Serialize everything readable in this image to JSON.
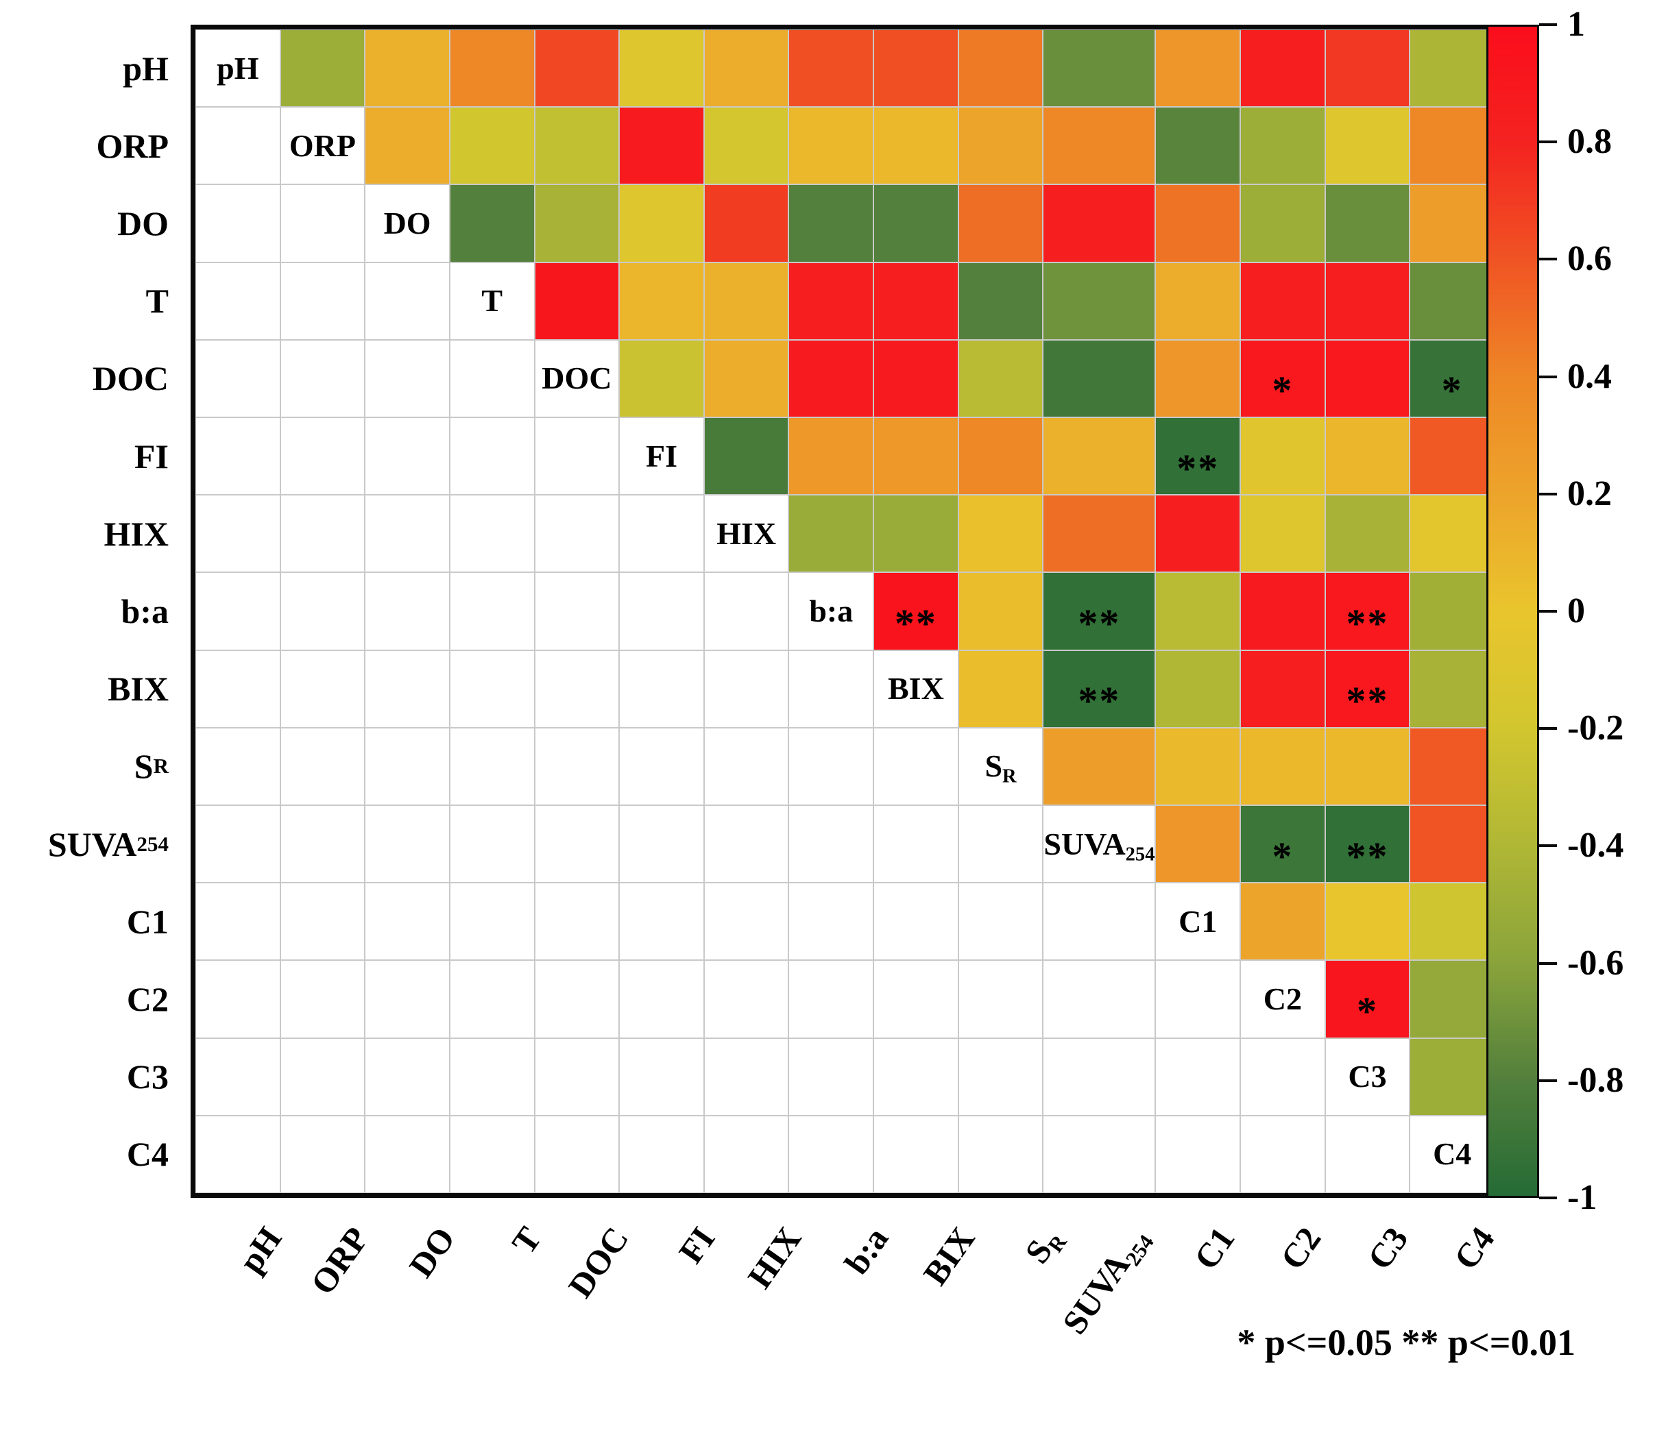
{
  "legend": {
    "text": "* p<=0.05  ** p<=0.01"
  },
  "chart_data": {
    "type": "heatmap",
    "subtype": "upper-triangle-correlation-matrix",
    "title": "",
    "grid": true,
    "variables": [
      {
        "base": "pH"
      },
      {
        "base": "ORP"
      },
      {
        "base": "DO"
      },
      {
        "base": "T"
      },
      {
        "base": "DOC"
      },
      {
        "base": "FI"
      },
      {
        "base": "HIX"
      },
      {
        "base": "b:a"
      },
      {
        "base": "BIX"
      },
      {
        "base": "S",
        "sub": "R"
      },
      {
        "base": "SUVA",
        "sub": "254"
      },
      {
        "base": "C1"
      },
      {
        "base": "C2"
      },
      {
        "base": "C3"
      },
      {
        "base": "C4"
      }
    ],
    "matrix": [
      [
        null,
        -0.5,
        0.12,
        0.4,
        0.65,
        -0.1,
        0.15,
        0.62,
        0.62,
        0.45,
        -0.72,
        0.3,
        0.85,
        0.72,
        -0.42
      ],
      [
        null,
        null,
        0.15,
        -0.2,
        -0.3,
        0.88,
        -0.18,
        0.08,
        0.08,
        0.2,
        0.4,
        -0.78,
        -0.5,
        -0.1,
        0.4
      ],
      [
        null,
        null,
        null,
        -0.8,
        -0.45,
        -0.1,
        0.7,
        -0.8,
        -0.8,
        0.5,
        0.85,
        0.48,
        -0.5,
        -0.72,
        0.25
      ],
      [
        null,
        null,
        null,
        null,
        0.92,
        0.1,
        0.12,
        0.85,
        0.85,
        -0.8,
        -0.7,
        0.15,
        0.85,
        0.85,
        -0.72
      ],
      [
        null,
        null,
        null,
        null,
        null,
        -0.25,
        0.15,
        0.88,
        0.88,
        -0.35,
        -0.88,
        0.3,
        0.9,
        0.9,
        -0.92
      ],
      [
        null,
        null,
        null,
        null,
        null,
        null,
        -0.85,
        0.28,
        0.28,
        0.4,
        0.12,
        -0.95,
        -0.08,
        0.1,
        0.58
      ],
      [
        null,
        null,
        null,
        null,
        null,
        null,
        null,
        -0.52,
        -0.52,
        0.03,
        0.5,
        0.85,
        -0.1,
        -0.45,
        -0.05
      ],
      [
        null,
        null,
        null,
        null,
        null,
        null,
        null,
        null,
        0.95,
        0.05,
        -0.95,
        -0.35,
        0.88,
        0.9,
        -0.48
      ],
      [
        null,
        null,
        null,
        null,
        null,
        null,
        null,
        null,
        null,
        0.05,
        -0.95,
        -0.4,
        0.85,
        0.9,
        -0.45
      ],
      [
        null,
        null,
        null,
        null,
        null,
        null,
        null,
        null,
        null,
        null,
        0.25,
        0.07,
        0.08,
        0.08,
        0.58
      ],
      [
        null,
        null,
        null,
        null,
        null,
        null,
        null,
        null,
        null,
        null,
        null,
        0.3,
        -0.9,
        -0.95,
        0.6
      ],
      [
        null,
        null,
        null,
        null,
        null,
        null,
        null,
        null,
        null,
        null,
        null,
        null,
        0.2,
        0.0,
        -0.22
      ],
      [
        null,
        null,
        null,
        null,
        null,
        null,
        null,
        null,
        null,
        null,
        null,
        null,
        null,
        0.93,
        -0.55
      ],
      [
        null,
        null,
        null,
        null,
        null,
        null,
        null,
        null,
        null,
        null,
        null,
        null,
        null,
        null,
        -0.5
      ],
      [
        null,
        null,
        null,
        null,
        null,
        null,
        null,
        null,
        null,
        null,
        null,
        null,
        null,
        null,
        null
      ]
    ],
    "significance": {
      "4-12": "*",
      "4-14": "*",
      "5-11": "**",
      "7-8": "**",
      "7-10": "**",
      "7-13": "**",
      "8-10": "**",
      "8-13": "**",
      "10-12": "*",
      "10-13": "**",
      "12-13": "*"
    },
    "colorbar": {
      "min": -1,
      "max": 1,
      "tick_labels": [
        "1",
        "0.8",
        "0.6",
        "0.4",
        "0.2",
        "0",
        "-0.2",
        "-0.4",
        "-0.6",
        "-0.8",
        "-1"
      ],
      "tick_values": [
        1,
        0.8,
        0.6,
        0.4,
        0.2,
        0,
        -0.2,
        -0.4,
        -0.6,
        -0.8,
        -1
      ],
      "anchors": [
        [
          1.0,
          "#fb0d1b"
        ],
        [
          0.8,
          "#f42320"
        ],
        [
          0.6,
          "#f05424"
        ],
        [
          0.4,
          "#ee8726"
        ],
        [
          0.2,
          "#eda42b"
        ],
        [
          0.0,
          "#e9c52d"
        ],
        [
          -0.2,
          "#d2c62f"
        ],
        [
          -0.4,
          "#b0b735"
        ],
        [
          -0.6,
          "#8aa43b"
        ],
        [
          -0.8,
          "#53803c"
        ],
        [
          -1.0,
          "#256b35"
        ]
      ]
    },
    "legend_position": "bottom-right"
  }
}
